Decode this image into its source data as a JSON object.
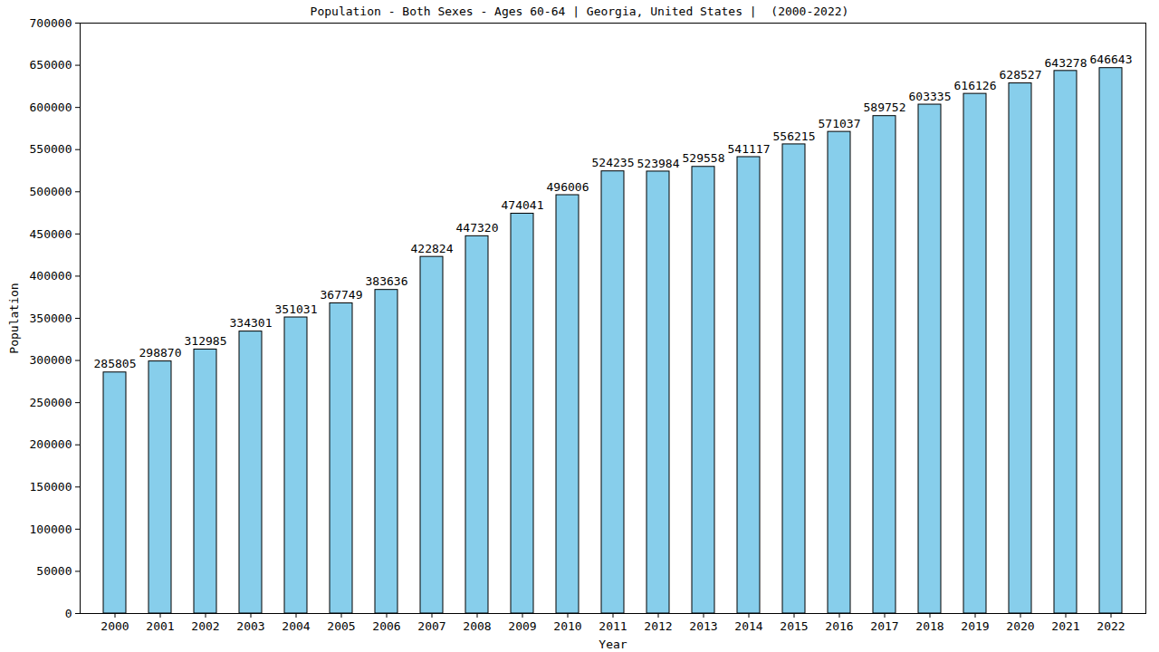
{
  "chart_data": {
    "type": "bar",
    "title": "Population - Both Sexes - Ages 60-64 | Georgia, United States |  (2000-2022)",
    "x_label": "Year",
    "y_label": "Population",
    "categories": [
      "2000",
      "2001",
      "2002",
      "2003",
      "2004",
      "2005",
      "2006",
      "2007",
      "2008",
      "2009",
      "2010",
      "2011",
      "2012",
      "2013",
      "2014",
      "2015",
      "2016",
      "2017",
      "2018",
      "2019",
      "2020",
      "2021",
      "2022"
    ],
    "values": [
      285805,
      298870,
      312985,
      334301,
      351031,
      367749,
      383636,
      422824,
      447320,
      474041,
      496006,
      524235,
      523984,
      529558,
      541117,
      556215,
      571037,
      589752,
      603335,
      616126,
      628527,
      643278,
      646643
    ],
    "color": "#87ceeb",
    "ylim": [
      0,
      700000
    ],
    "yticks": [
      0,
      50000,
      100000,
      150000,
      200000,
      250000,
      300000,
      350000,
      400000,
      450000,
      500000,
      550000,
      600000,
      650000,
      700000
    ],
    "grid": false,
    "data_labels": true
  }
}
